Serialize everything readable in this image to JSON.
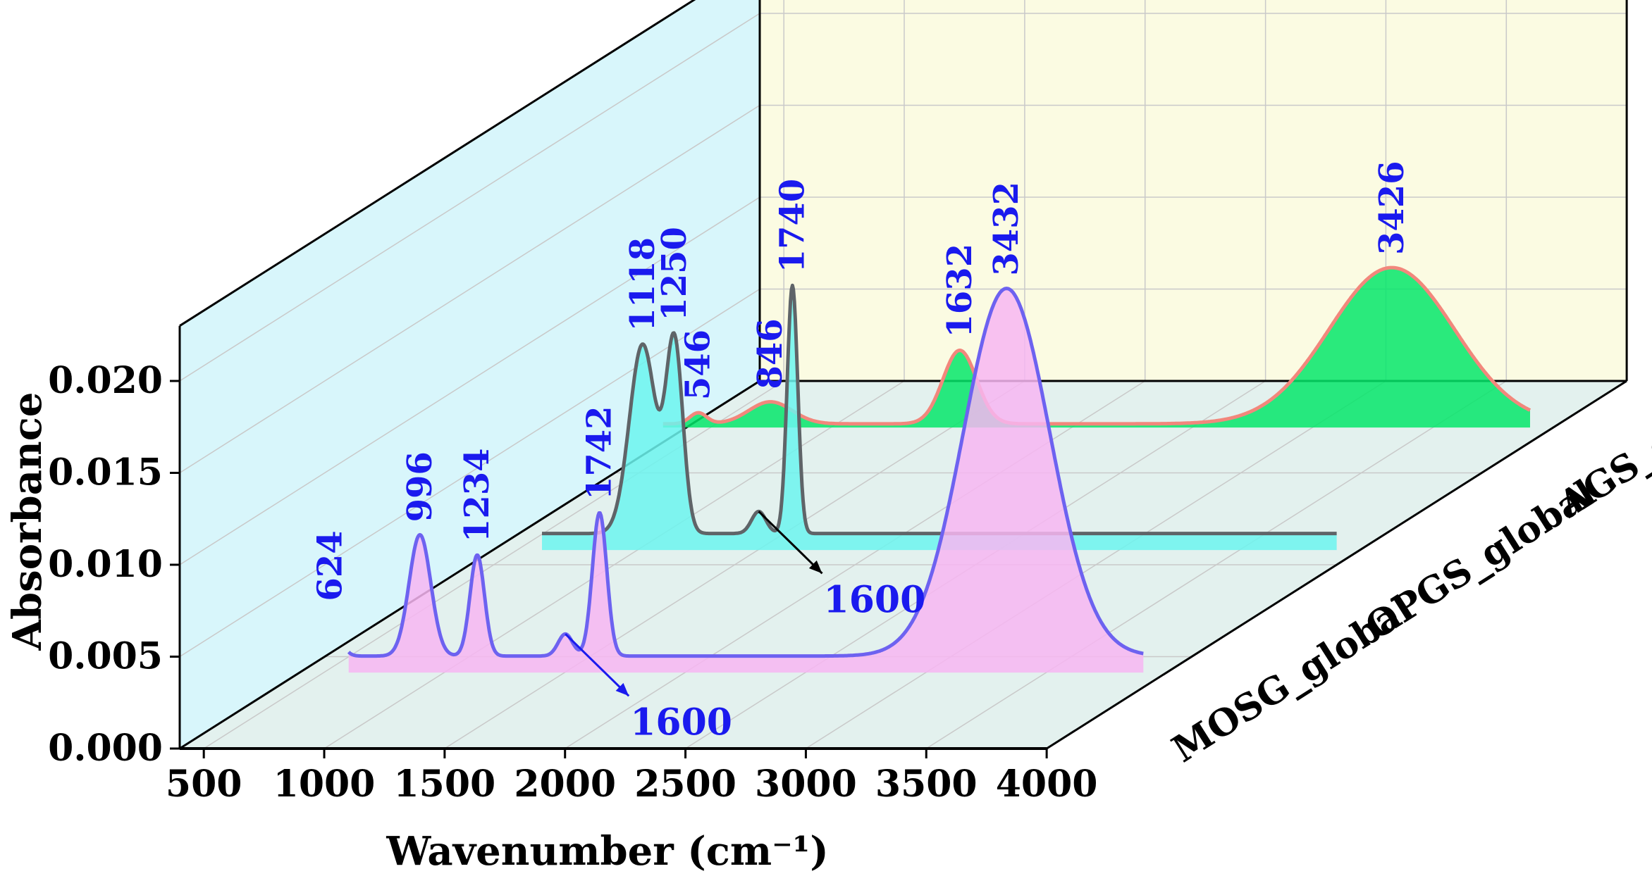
{
  "chart_data": {
    "type": "line",
    "style": "3d-waterfall",
    "xlabel": "Wavenumber (cm⁻¹)",
    "ylabel": "Absorbance",
    "xlim": [
      400,
      4000
    ],
    "ylim": [
      0,
      0.023
    ],
    "x_ticks": [
      "500",
      "1000",
      "1500",
      "2000",
      "2500",
      "3000",
      "3500",
      "4000"
    ],
    "y_ticks": [
      "0.000",
      "0.005",
      "0.010",
      "0.015",
      "0.020"
    ],
    "grid": true,
    "colors": {
      "left_wall": "#d8f6fb",
      "back_wall": "#fbfbe2",
      "floor": "#e3f1ee",
      "grid": "#c9c9c9"
    },
    "series": [
      {
        "name": "MOSG_global",
        "line_color": "#6d62f0",
        "fill_color": "#f7b6f2",
        "x_start": 700,
        "x_end": 4000,
        "baseline": 0.0017,
        "peaks": [
          {
            "x": 624,
            "height": 0.0023,
            "width": 35,
            "label": "624"
          },
          {
            "x": 996,
            "height": 0.0066,
            "width": 45,
            "label": "996"
          },
          {
            "x": 1234,
            "height": 0.0055,
            "width": 30,
            "label": "1234"
          },
          {
            "x": 1600,
            "height": 0.0012,
            "width": 30,
            "label": ""
          },
          {
            "x": 1742,
            "height": 0.0078,
            "width": 30,
            "label": "1742"
          },
          {
            "x": 3432,
            "height": 0.02,
            "width": 180,
            "label": "3432"
          }
        ]
      },
      {
        "name": "OPGS_global",
        "line_color": "#5f6468",
        "fill_color": "#6cf5ef",
        "x_start": 700,
        "x_end": 4000,
        "baseline": 0.0017,
        "peaks": [
          {
            "x": 1118,
            "height": 0.0103,
            "width": 55,
            "label": "1118"
          },
          {
            "x": 1250,
            "height": 0.0103,
            "width": 35,
            "label": "1250"
          },
          {
            "x": 1600,
            "height": 0.0012,
            "width": 30,
            "label": ""
          },
          {
            "x": 1740,
            "height": 0.0135,
            "width": 22,
            "label": "1740"
          }
        ]
      },
      {
        "name": "AGS_global",
        "line_color": "#f2877c",
        "fill_color": "#05e66a",
        "x_start": 400,
        "x_end": 4000,
        "baseline": 0.001,
        "peaks": [
          {
            "x": 546,
            "height": 0.0006,
            "width": 35,
            "label": "546"
          },
          {
            "x": 846,
            "height": 0.0012,
            "width": 90,
            "label": "846"
          },
          {
            "x": 1632,
            "height": 0.004,
            "width": 70,
            "label": "1632"
          },
          {
            "x": 3426,
            "height": 0.0085,
            "width": 260,
            "label": "3426"
          }
        ]
      }
    ],
    "annotations": [
      {
        "text": "1600",
        "series": "MOSG_global",
        "x": 1600,
        "color": "#1a1aee"
      },
      {
        "text": "1600",
        "series": "OPGS_global",
        "x": 1600,
        "color": "#000000"
      }
    ]
  }
}
